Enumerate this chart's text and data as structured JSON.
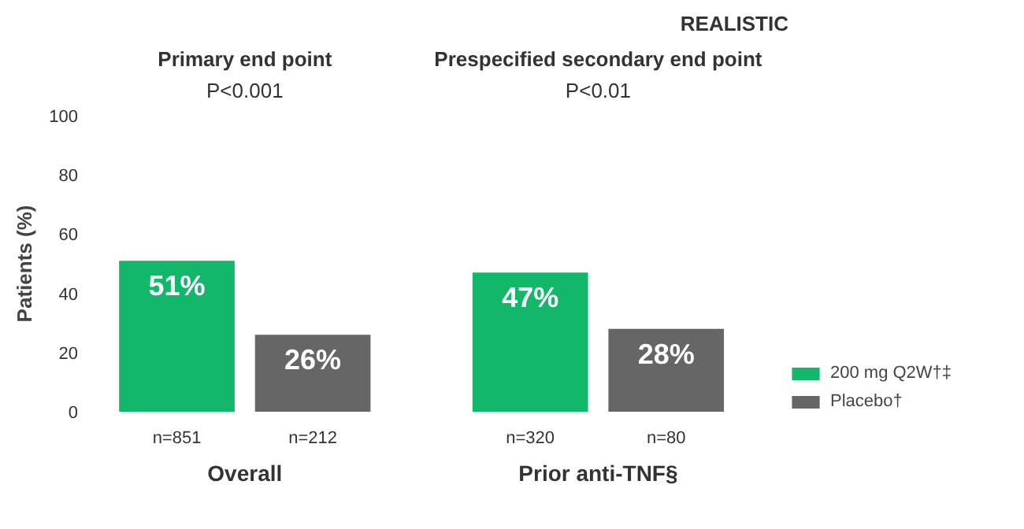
{
  "chart_data": {
    "type": "bar",
    "title": "REALISTIC",
    "ylabel": "Patients (%)",
    "categories": [
      "n=851",
      "n=212",
      "n=320",
      "n=80"
    ],
    "series": [
      {
        "name": "200 mg Q2W†‡",
        "color": "#12b76a",
        "values": [
          51,
          null,
          47,
          null
        ]
      },
      {
        "name": "Placebo†",
        "color": "#666666",
        "values": [
          null,
          26,
          null,
          28
        ]
      }
    ],
    "value_labels": [
      [
        "51%",
        null,
        "47%",
        null
      ],
      [
        null,
        "26%",
        null,
        "28%"
      ]
    ],
    "annotations": [
      "Primary end point",
      "P<0.001",
      "Prespecified secondary end point",
      "P<0.01",
      "Overall",
      "Prior anti-TNF§"
    ],
    "ylim": [
      0,
      100
    ],
    "yticks": [
      0,
      20,
      40,
      60,
      80,
      100
    ],
    "grid": false,
    "legend": "bottom right"
  }
}
